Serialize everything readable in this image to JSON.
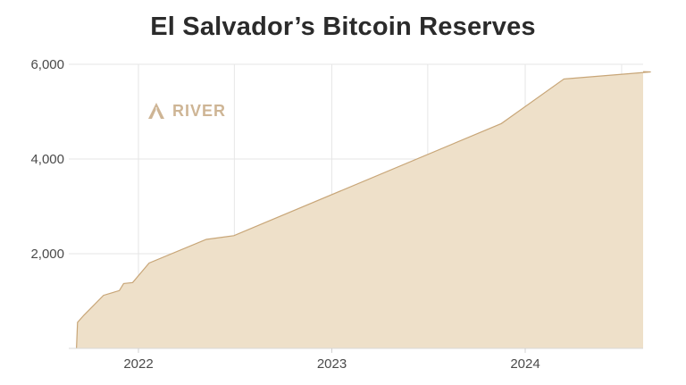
{
  "chart_data": {
    "type": "area",
    "title": "El Salvador’s Bitcoin Reserves",
    "xlabel": "",
    "ylabel": "",
    "x_tick_labels": [
      "2022",
      "2023",
      "2024"
    ],
    "y_tick_labels": [
      "2,000",
      "4,000",
      "6,000"
    ],
    "ylim": [
      0,
      6000
    ],
    "grid": true,
    "legend": "none",
    "watermark": "RIVER",
    "colors": {
      "fill": "#eee0c9",
      "line": "#c8a678",
      "grid": "#e6e6e6",
      "watermark": "#c9ad8a"
    },
    "series": [
      {
        "x": [
          "2021-09-06",
          "2021-09-08",
          "2021-09-20",
          "2021-10-27",
          "2021-11-26",
          "2021-12-04",
          "2021-12-21",
          "2022-01-21",
          "2022-05-09",
          "2022-06-30",
          "2023-11-17",
          "2024-03-14",
          "2024-08-25"
        ],
        "values": [
          0,
          550,
          700,
          1120,
          1220,
          1370,
          1391,
          1801,
          2301,
          2381,
          4750,
          5690,
          5840
        ]
      }
    ]
  }
}
